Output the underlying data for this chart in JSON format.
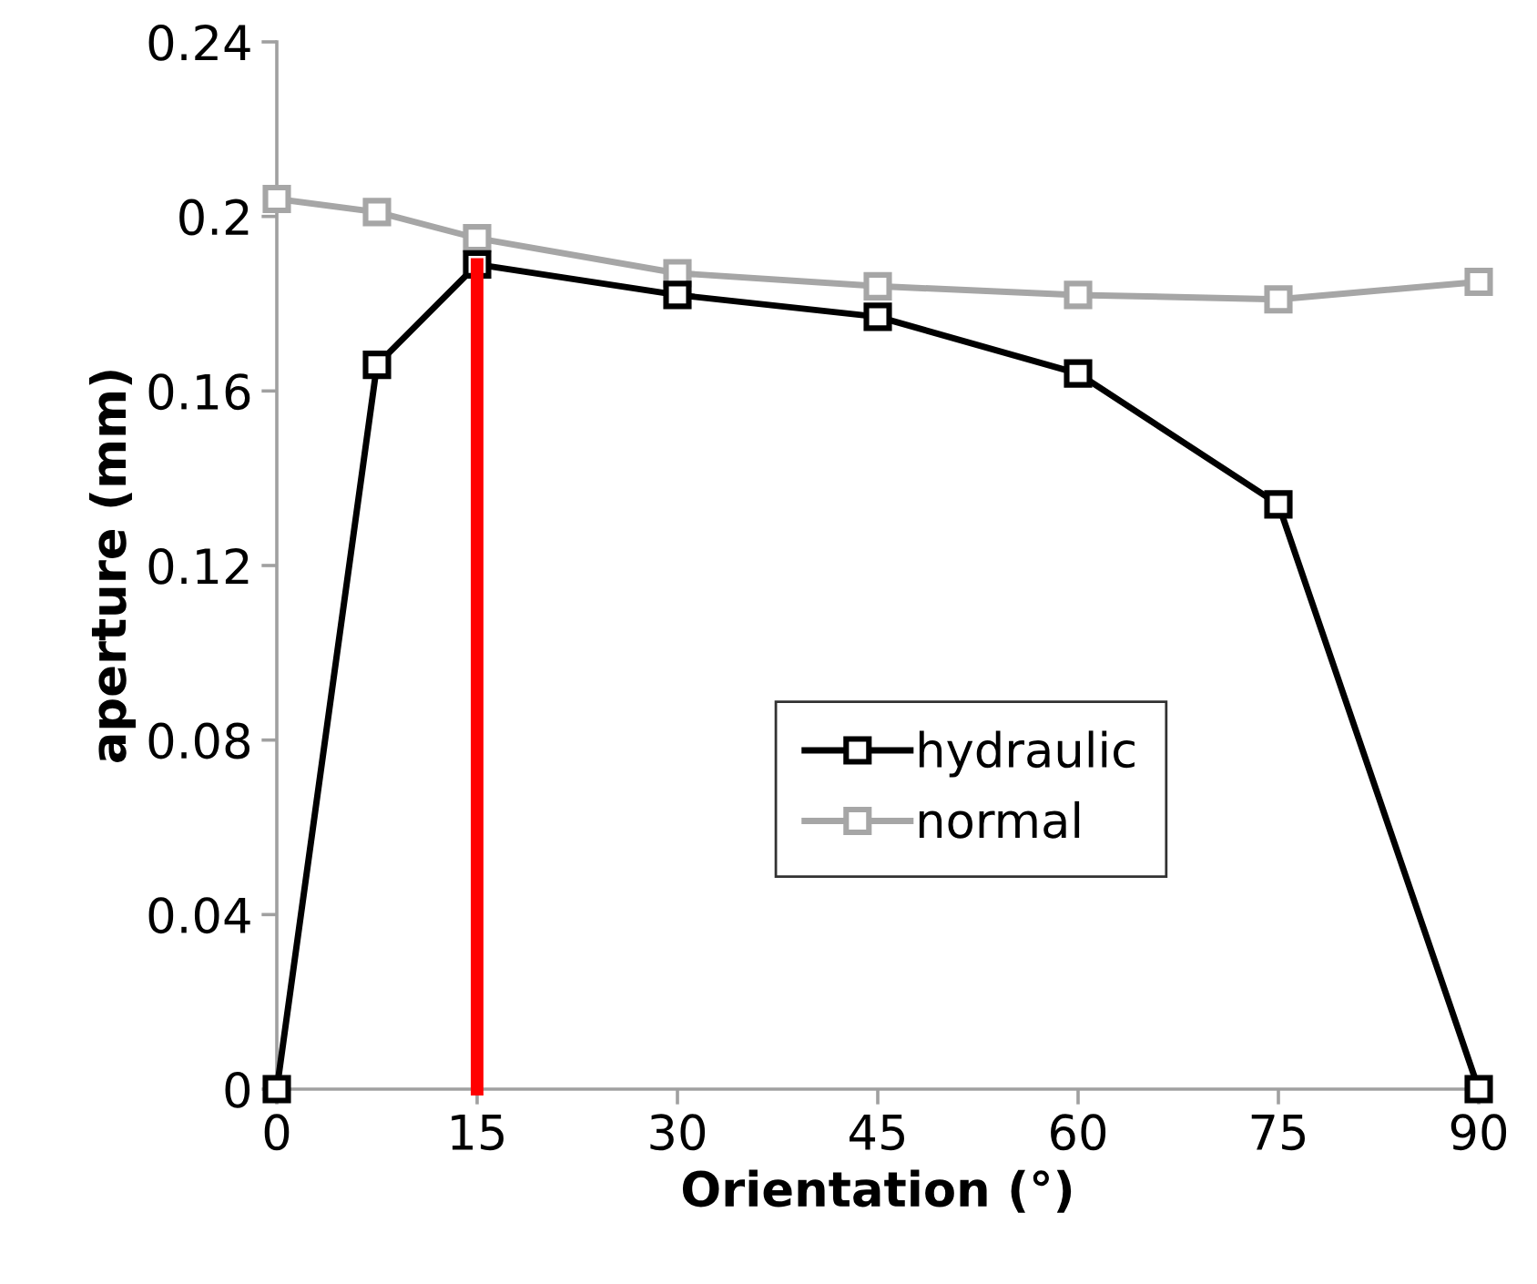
{
  "chart_data": {
    "type": "line",
    "xlabel": "Orientation (°)",
    "ylabel": "aperture (mm)",
    "x": [
      0,
      7.5,
      15,
      30,
      45,
      60,
      75,
      90
    ],
    "series": [
      {
        "name": "hydraulic",
        "color": "#000000",
        "values": [
          0,
          0.166,
          0.189,
          0.182,
          0.177,
          0.164,
          0.134,
          0
        ]
      },
      {
        "name": "normal",
        "color": "#a6a6a6",
        "values": [
          0.204,
          0.201,
          0.195,
          0.187,
          0.184,
          0.182,
          0.181,
          0.185
        ]
      },
      {
        "color": "#ff0000",
        "x": [
          15,
          15
        ],
        "values": [
          0,
          0.189
        ],
        "marker": "none"
      }
    ],
    "xlim": [
      0,
      90
    ],
    "xticks": [
      0,
      15,
      30,
      45,
      60,
      75,
      90
    ],
    "ylim": [
      0,
      0.24
    ],
    "yticks": [
      0,
      0.04,
      0.08,
      0.12,
      0.16,
      0.2,
      0.24
    ],
    "marker": "square",
    "line_style": "solid",
    "grid": false,
    "legend": "bottom right"
  }
}
